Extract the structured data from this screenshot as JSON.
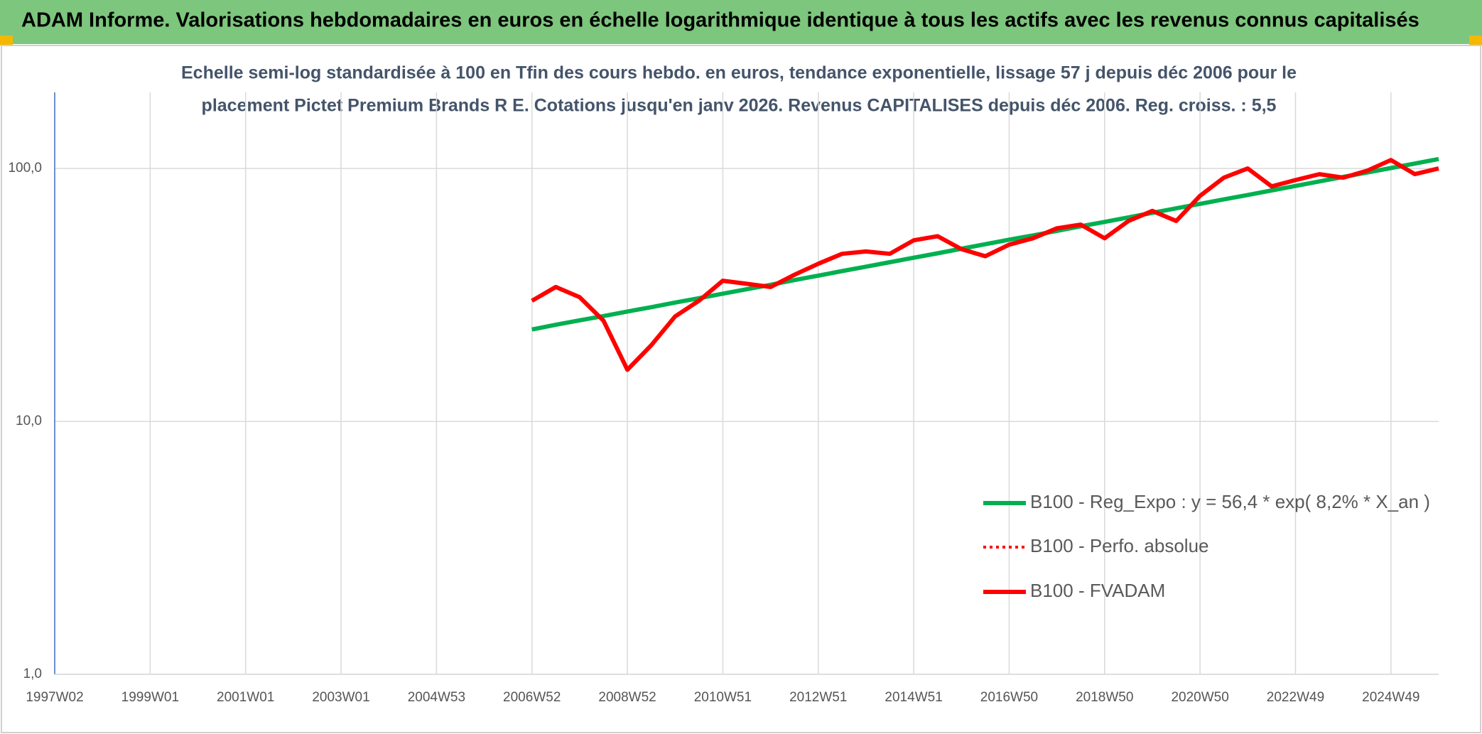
{
  "header": {
    "title": "ADAM Informe. Valorisations hebdomadaires en euros en échelle logarithmique identique à tous les actifs avec les revenus connus capitalisés"
  },
  "chart_data": {
    "type": "line",
    "title": [
      "Echelle semi-log standardisée à 100 en Tfin des cours hebdo. en euros, tendance exponentielle, lissage 57 j depuis déc 2006 pour le",
      "placement Pictet Premium Brands R E. Cotations jusqu'en janv 2026. Revenus CAPITALISES depuis déc 2006. Reg. croiss. : 5,5"
    ],
    "categories": [
      "1997W02",
      null,
      null,
      null,
      "1999W01",
      null,
      null,
      null,
      "2001W01",
      null,
      null,
      null,
      "2003W01",
      null,
      null,
      null,
      "2004W53",
      null,
      null,
      null,
      "2006W52",
      null,
      null,
      null,
      "2008W52",
      null,
      null,
      null,
      "2010W51",
      null,
      null,
      null,
      "2012W51",
      null,
      null,
      null,
      "2014W51",
      null,
      null,
      null,
      "2016W50",
      null,
      null,
      null,
      "2018W50",
      null,
      null,
      null,
      "2020W50",
      null,
      null,
      null,
      "2022W49",
      null,
      null,
      null,
      "2024W49",
      null,
      null
    ],
    "log_scale": true,
    "ylim": [
      1,
      200
    ],
    "yticks": [
      {
        "value": 1,
        "label": "1,0"
      },
      {
        "value": 10,
        "label": "10,0"
      },
      {
        "value": 100,
        "label": "100,0"
      }
    ],
    "grid": true,
    "legend": "bottom-right",
    "series": [
      {
        "name": "B100 - Reg_Expo : y = 56,4 * exp( 8,2% *  X_an )",
        "color": "#00b050",
        "style": "solid",
        "values": [
          null,
          null,
          null,
          null,
          null,
          null,
          null,
          null,
          null,
          null,
          null,
          null,
          null,
          null,
          null,
          null,
          null,
          null,
          null,
          null,
          23.1,
          24.1,
          25.1,
          26.1,
          27.2,
          28.3,
          29.5,
          30.7,
          32.0,
          33.3,
          34.7,
          36.2,
          37.7,
          39.3,
          40.9,
          42.6,
          44.4,
          46.2,
          48.2,
          50.2,
          52.3,
          54.4,
          56.7,
          59.1,
          61.5,
          64.1,
          66.8,
          69.6,
          72.5,
          75.5,
          78.6,
          81.9,
          85.3,
          88.9,
          92.6,
          96.4,
          100.4,
          104.6,
          109.0
        ]
      },
      {
        "name": "B100 - Perfo. absolue",
        "color": "#ff0000",
        "style": "dotted",
        "values": [
          null,
          null,
          null,
          null,
          null,
          null,
          null,
          null,
          null,
          null,
          null,
          null,
          null,
          null,
          null,
          null,
          null,
          null,
          null,
          null,
          null,
          null,
          null,
          null,
          null,
          null,
          null,
          null,
          null,
          null,
          null,
          null,
          null,
          null,
          null,
          null,
          null,
          null,
          null,
          null,
          null,
          null,
          null,
          null,
          null,
          null,
          null,
          null,
          null,
          null,
          null,
          null,
          null,
          null,
          null,
          null,
          null,
          null,
          null
        ]
      },
      {
        "name": "B100 - FVADAM",
        "color": "#ff0000",
        "style": "solid",
        "values": [
          null,
          null,
          null,
          null,
          null,
          null,
          null,
          null,
          null,
          null,
          null,
          null,
          null,
          null,
          null,
          null,
          null,
          null,
          null,
          null,
          30,
          34,
          31,
          25,
          16,
          20,
          26,
          30,
          36,
          35,
          34,
          38,
          42,
          46,
          47,
          46,
          52,
          54,
          48,
          45,
          50,
          53,
          58,
          60,
          53,
          62,
          68,
          62,
          78,
          92,
          100,
          85,
          90,
          95,
          92,
          98,
          108,
          95,
          100
        ]
      }
    ]
  }
}
